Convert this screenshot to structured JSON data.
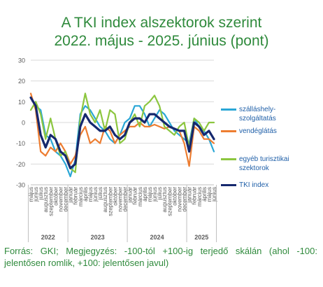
{
  "chart_data": {
    "type": "line",
    "title_lines": [
      "A TKI index alszektorok szerint",
      "2022. május - 2025. június (pont)"
    ],
    "ylim": [
      -30,
      30
    ],
    "yticks": [
      30,
      20,
      10,
      0,
      -10,
      -20,
      -30
    ],
    "grid": true,
    "legend_position": "right",
    "categories": [
      "május",
      "június",
      "július",
      "augusztus",
      "szeptember",
      "október",
      "november",
      "december",
      "január",
      "február",
      "március",
      "április",
      "május",
      "június",
      "július",
      "augusztus",
      "szeptember",
      "október",
      "november",
      "december",
      "január",
      "február",
      "március",
      "április",
      "május",
      "június",
      "július",
      "augusztus",
      "szeptember",
      "október",
      "november",
      "december",
      "január",
      "február",
      "március",
      "április",
      "május",
      "június"
    ],
    "year_groups": [
      {
        "label": "2022",
        "count": 8
      },
      {
        "label": "2023",
        "count": 12
      },
      {
        "label": "2024",
        "count": 12
      },
      {
        "label": "2025",
        "count": 6
      }
    ],
    "series": [
      {
        "name": "szálláshely-szolgáltatás",
        "color": "#2aa7d6",
        "width": 2.2,
        "values": [
          12,
          8,
          6,
          -6,
          -8,
          -14,
          -16,
          -20,
          -26,
          -18,
          4,
          8,
          6,
          2,
          -2,
          -4,
          -8,
          -10,
          -6,
          0,
          2,
          8,
          8,
          4,
          -2,
          2,
          6,
          4,
          0,
          -4,
          -6,
          -8,
          -10,
          2,
          -2,
          -4,
          -8,
          -14
        ]
      },
      {
        "name": "vendéglátás",
        "color": "#ed7d31",
        "width": 2.2,
        "values": [
          14,
          6,
          -14,
          -16,
          -12,
          -14,
          -10,
          -14,
          -20,
          -16,
          -6,
          -2,
          -10,
          -8,
          -10,
          -2,
          -4,
          -10,
          -6,
          -4,
          -2,
          -2,
          0,
          -2,
          -2,
          -1,
          -2,
          -3,
          -2,
          -3,
          -4,
          -10,
          -21,
          -2,
          -4,
          -8,
          -8,
          -10
        ]
      },
      {
        "name": "egyéb turisztikai szektorok",
        "color": "#8cc63f",
        "width": 2.2,
        "values": [
          6,
          10,
          4,
          -8,
          2,
          -8,
          -16,
          -14,
          -22,
          -24,
          2,
          14,
          4,
          0,
          6,
          -4,
          6,
          4,
          -10,
          -8,
          0,
          4,
          -2,
          8,
          10,
          13,
          8,
          -2,
          -4,
          -6,
          -2,
          0,
          -12,
          2,
          0,
          -4,
          0,
          0
        ]
      },
      {
        "name": "TKI index",
        "color": "#15286e",
        "width": 3.2,
        "values": [
          12,
          8,
          -6,
          -12,
          -6,
          -8,
          -14,
          -16,
          -22,
          -20,
          -2,
          4,
          0,
          -2,
          -4,
          -4,
          -2,
          -6,
          -8,
          -6,
          0,
          2,
          2,
          0,
          4,
          4,
          2,
          0,
          -2,
          -3,
          -4,
          -4,
          -14,
          0,
          -2,
          -6,
          -4,
          -8
        ]
      }
    ]
  },
  "footer": "Forrás: GKI; Megjegyzés: -100-tól +100-ig terjedő skálán (ahol -100: jelentősen romlik, +100: jelentősen javul)"
}
